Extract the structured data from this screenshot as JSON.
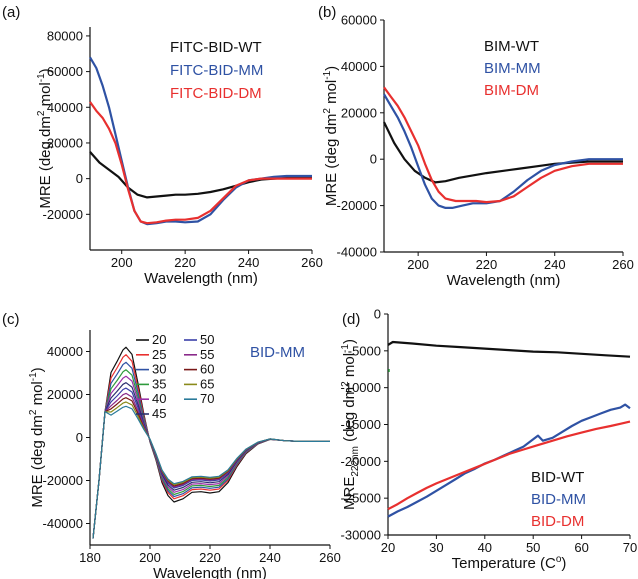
{
  "figure": {
    "panel_labels": [
      "(a)",
      "(b)",
      "(c)",
      "(d)"
    ]
  },
  "colors": {
    "black": "#111111",
    "blue": "#2f52a4",
    "red": "#e8302f"
  },
  "chart_data": [
    {
      "id": "a",
      "type": "line",
      "panel_label": "(a)",
      "xlabel": "Wavelength (nm)",
      "ylabel_main": "MRE (deg dm",
      "ylabel_sup1": "2",
      "ylabel_mid": " mol",
      "ylabel_sup2": "-1",
      "ylabel_end": ")",
      "xlim": [
        190,
        260
      ],
      "ylim": [
        -40000,
        85000
      ],
      "xticks": [
        200,
        220,
        240,
        260
      ],
      "yticks": [
        -20000,
        0,
        20000,
        40000,
        60000,
        80000
      ],
      "legend_position": "top-right",
      "series": [
        {
          "name": "FITC-BID-WT",
          "color": "#111111",
          "x": [
            190,
            193,
            196,
            199,
            202,
            205,
            208,
            211,
            214,
            217,
            220,
            224,
            228,
            232,
            236,
            240,
            244,
            248,
            252,
            256,
            260
          ],
          "y": [
            15000,
            9000,
            5000,
            1000,
            -5000,
            -9000,
            -10500,
            -10000,
            -9500,
            -9000,
            -9000,
            -8500,
            -7500,
            -6000,
            -4000,
            -2000,
            -500,
            0,
            500,
            1000,
            1000
          ]
        },
        {
          "name": "FITC-BID-MM",
          "color": "#2f52a4",
          "x": [
            190,
            192,
            194,
            196,
            198,
            200,
            202,
            204,
            206,
            208,
            211,
            214,
            217,
            220,
            224,
            228,
            232,
            236,
            240,
            244,
            248,
            252,
            256,
            260
          ],
          "y": [
            68000,
            62000,
            52000,
            40000,
            25000,
            10000,
            -5000,
            -18000,
            -24000,
            -25500,
            -25000,
            -24000,
            -24000,
            -24500,
            -24000,
            -20000,
            -12000,
            -5000,
            -1000,
            0,
            1000,
            1500,
            1500,
            1500
          ]
        },
        {
          "name": "FITC-BID-DM",
          "color": "#e8302f",
          "x": [
            190,
            192,
            194,
            196,
            198,
            200,
            202,
            204,
            206,
            208,
            211,
            214,
            217,
            220,
            224,
            228,
            232,
            236,
            240,
            244,
            248,
            252,
            256,
            260
          ],
          "y": [
            43000,
            38000,
            34000,
            28000,
            20000,
            8000,
            -6000,
            -18000,
            -24000,
            -25000,
            -24500,
            -23500,
            -23000,
            -23000,
            -22000,
            -18000,
            -11000,
            -4000,
            -1000,
            0,
            0,
            0,
            0,
            0
          ]
        }
      ]
    },
    {
      "id": "b",
      "type": "line",
      "panel_label": "(b)",
      "xlabel": "Wavelength (nm)",
      "ylabel_main": "MRE (deg dm",
      "ylabel_sup1": "2",
      "ylabel_mid": " mol",
      "ylabel_sup2": "-1",
      "ylabel_end": ")",
      "xlim": [
        190,
        260
      ],
      "ylim": [
        -40000,
        60000
      ],
      "xticks": [
        200,
        220,
        240,
        260
      ],
      "yticks": [
        -40000,
        -20000,
        0,
        20000,
        40000,
        60000
      ],
      "legend_position": "top-right",
      "series": [
        {
          "name": "BIM-WT",
          "color": "#111111",
          "x": [
            190,
            193,
            196,
            199,
            202,
            205,
            208,
            212,
            216,
            220,
            225,
            230,
            235,
            240,
            245,
            250,
            255,
            260
          ],
          "y": [
            16000,
            7000,
            0,
            -5000,
            -8000,
            -10000,
            -9500,
            -8000,
            -7000,
            -6000,
            -5000,
            -4000,
            -3000,
            -2000,
            -1500,
            -1000,
            -1000,
            -1000
          ]
        },
        {
          "name": "BIM-MM",
          "color": "#2f52a4",
          "x": [
            190,
            192,
            194,
            196,
            198,
            200,
            202,
            204,
            206,
            208,
            210,
            213,
            216,
            220,
            224,
            228,
            232,
            236,
            240,
            245,
            250,
            255,
            260
          ],
          "y": [
            28000,
            23000,
            18000,
            12000,
            5000,
            -3000,
            -11000,
            -17000,
            -20000,
            -21000,
            -21000,
            -20000,
            -19000,
            -19000,
            -18000,
            -14000,
            -9000,
            -5000,
            -2500,
            -1000,
            0,
            0,
            0
          ]
        },
        {
          "name": "BIM-DM",
          "color": "#e8302f",
          "x": [
            190,
            192,
            194,
            196,
            198,
            200,
            202,
            204,
            206,
            208,
            211,
            214,
            217,
            220,
            224,
            228,
            232,
            236,
            240,
            245,
            250,
            255,
            260
          ],
          "y": [
            31000,
            27000,
            23000,
            18000,
            12000,
            6000,
            -2000,
            -9000,
            -14000,
            -17000,
            -18000,
            -18000,
            -18000,
            -18500,
            -18000,
            -16000,
            -12000,
            -8000,
            -5000,
            -3000,
            -2000,
            -2000,
            -2000
          ]
        }
      ]
    },
    {
      "id": "c",
      "type": "line",
      "panel_label": "(c)",
      "title": "BID-MM",
      "xlabel": "Wavelength (nm)",
      "ylabel_main": "MRE (deg dm",
      "ylabel_sup1": "2",
      "ylabel_mid": " mol",
      "ylabel_sup2": "-1",
      "ylabel_end": ")",
      "xlim": [
        180,
        260
      ],
      "ylim": [
        -50000,
        50000
      ],
      "xticks": [
        180,
        200,
        220,
        240,
        260
      ],
      "yticks": [
        -40000,
        -20000,
        0,
        20000,
        40000
      ],
      "legend_position": "top-right",
      "series": [
        {
          "name": "20",
          "color": "#111111",
          "peak": 42000,
          "trough": -30000
        },
        {
          "name": "25",
          "color": "#e8302f",
          "peak": 38500,
          "trough": -28500
        },
        {
          "name": "30",
          "color": "#2f52a4",
          "peak": 35000,
          "trough": -27500
        },
        {
          "name": "35",
          "color": "#2e9a3c",
          "peak": 31500,
          "trough": -26500
        },
        {
          "name": "40",
          "color": "#9b2fa8",
          "peak": 28500,
          "trough": -25500
        },
        {
          "name": "45",
          "color": "#2b2f6e",
          "peak": 25500,
          "trough": -24500
        },
        {
          "name": "50",
          "color": "#3b3fa8",
          "peak": 23000,
          "trough": -23500
        },
        {
          "name": "55",
          "color": "#8a2a8a",
          "peak": 20500,
          "trough": -23000
        },
        {
          "name": "60",
          "color": "#7a1818",
          "peak": 18500,
          "trough": -22500
        },
        {
          "name": "65",
          "color": "#8a8a1a",
          "peak": 16500,
          "trough": -22000
        },
        {
          "name": "70",
          "color": "#2a7a9a",
          "peak": 14500,
          "trough": -21500
        }
      ]
    },
    {
      "id": "d",
      "type": "line",
      "panel_label": "(d)",
      "xlabel": "Temperature (C",
      "xlabel_sup": "o",
      "xlabel_end": ")",
      "ylabel_main": "MRE",
      "ylabel_sub": "222nm",
      "ylabel_mid": " (deg dm",
      "ylabel_sup1": "2",
      "ylabel_mid2": " mol",
      "ylabel_sup2": "-1",
      "ylabel_end": ")",
      "xlim": [
        20,
        70
      ],
      "ylim": [
        -30000,
        0
      ],
      "xticks": [
        20,
        30,
        40,
        50,
        60,
        70
      ],
      "yticks": [
        -30000,
        -25000,
        -20000,
        -15000,
        -10000,
        -5000,
        0
      ],
      "legend_position": "bottom-right",
      "series": [
        {
          "name": "BID-WT",
          "color": "#111111",
          "x": [
            20,
            21,
            25,
            30,
            35,
            40,
            45,
            50,
            55,
            60,
            65,
            70
          ],
          "y": [
            -4200,
            -3800,
            -4000,
            -4300,
            -4500,
            -4700,
            -4900,
            -5100,
            -5200,
            -5400,
            -5600,
            -5800
          ]
        },
        {
          "name": "BID-MM",
          "color": "#2f52a4",
          "x": [
            20,
            22,
            24,
            26,
            28,
            30,
            32,
            34,
            36,
            38,
            40,
            42,
            44,
            46,
            48,
            50,
            51,
            52,
            54,
            56,
            58,
            60,
            62,
            64,
            66,
            68,
            69,
            70
          ],
          "y": [
            -27500,
            -26800,
            -26200,
            -25500,
            -24800,
            -24000,
            -23200,
            -22400,
            -21600,
            -21000,
            -20300,
            -19800,
            -19200,
            -18600,
            -18000,
            -17000,
            -16500,
            -17200,
            -16800,
            -16000,
            -15200,
            -14500,
            -14000,
            -13500,
            -13000,
            -12700,
            -12300,
            -12800
          ]
        },
        {
          "name": "BID-DM",
          "color": "#e8302f",
          "x": [
            20,
            22,
            24,
            26,
            28,
            30,
            33,
            36,
            39,
            42,
            45,
            48,
            51,
            54,
            57,
            60,
            63,
            66,
            68,
            70
          ],
          "y": [
            -26500,
            -25800,
            -25000,
            -24300,
            -23600,
            -23000,
            -22200,
            -21400,
            -20600,
            -19800,
            -19000,
            -18400,
            -17800,
            -17200,
            -16600,
            -16100,
            -15600,
            -15200,
            -14900,
            -14600
          ]
        }
      ]
    }
  ]
}
